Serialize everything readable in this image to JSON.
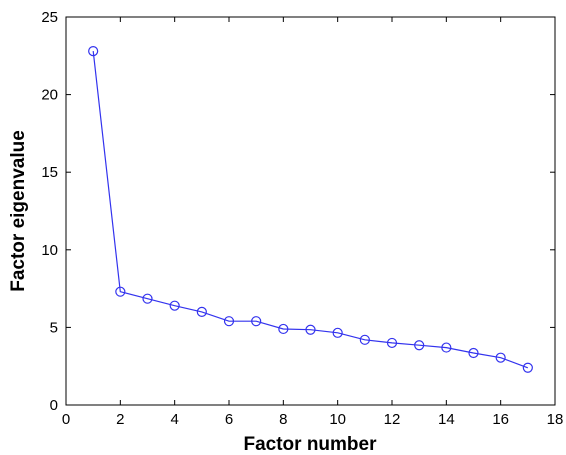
{
  "chart_data": {
    "type": "line",
    "title": "",
    "xlabel": "Factor number",
    "ylabel": "Factor eigenvalue",
    "xlim": [
      0,
      18
    ],
    "ylim": [
      0,
      25
    ],
    "xticks": [
      0,
      2,
      4,
      6,
      8,
      10,
      12,
      14,
      16,
      18
    ],
    "yticks": [
      0,
      5,
      10,
      15,
      20,
      25
    ],
    "grid": false,
    "legend": "none",
    "series": [
      {
        "color": "#3333ee",
        "marker": "circle",
        "x": [
          1,
          2,
          3,
          4,
          5,
          6,
          7,
          8,
          9,
          10,
          11,
          12,
          13,
          14,
          15,
          16,
          17
        ],
        "y": [
          22.8,
          7.3,
          6.85,
          6.4,
          6.0,
          5.4,
          5.4,
          4.9,
          4.85,
          4.65,
          4.2,
          4.0,
          3.85,
          3.7,
          3.35,
          3.05,
          2.4
        ]
      }
    ]
  }
}
